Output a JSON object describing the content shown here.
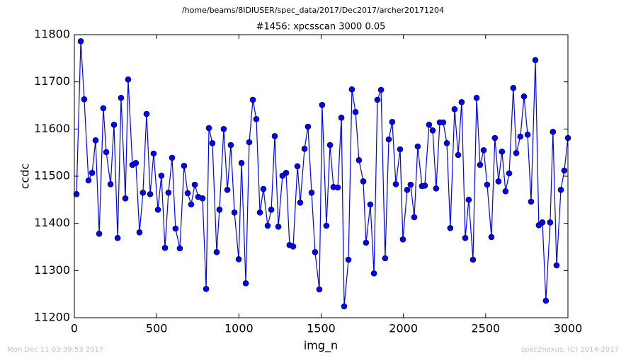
{
  "chart_data": {
    "type": "line",
    "title": "/home/beams/8IDIUSER/spec_data/2017/Dec2017/archer20171204",
    "subtitle": "#1456: xpcsscan 3000 0.05",
    "xlabel": "img_n",
    "ylabel": "ccdc",
    "x": [
      13,
      39,
      60,
      86,
      108,
      129,
      151,
      176,
      194,
      220,
      241,
      263,
      284,
      310,
      327,
      353,
      374,
      396,
      417,
      439,
      461,
      482,
      508,
      529,
      551,
      572,
      594,
      615,
      641,
      667,
      689,
      710,
      732,
      753,
      779,
      801,
      818,
      839,
      865,
      882,
      908,
      930,
      951,
      973,
      999,
      1016,
      1042,
      1063,
      1085,
      1106,
      1128,
      1149,
      1175,
      1197,
      1218,
      1240,
      1265,
      1287,
      1308,
      1330,
      1356,
      1373,
      1399,
      1420,
      1442,
      1463,
      1489,
      1506,
      1532,
      1554,
      1575,
      1601,
      1623,
      1640,
      1666,
      1687,
      1709,
      1730,
      1756,
      1773,
      1799,
      1821,
      1842,
      1864,
      1889,
      1911,
      1932,
      1954,
      1980,
      1997,
      2023,
      2044,
      2066,
      2087,
      2113,
      2130,
      2156,
      2178,
      2199,
      2221,
      2242,
      2264,
      2285,
      2311,
      2333,
      2354,
      2376,
      2397,
      2423,
      2445,
      2466,
      2488,
      2509,
      2535,
      2556,
      2578,
      2599,
      2621,
      2643,
      2668,
      2686,
      2711,
      2733,
      2755,
      2776,
      2802,
      2823,
      2845,
      2866,
      2892,
      2909,
      2931,
      2957,
      2978,
      3000
    ],
    "series": [
      {
        "color": "#0000ff",
        "values": [
          11462,
          11786,
          11663,
          11491,
          11507,
          11576,
          11378,
          11644,
          11551,
          11483,
          11609,
          11369,
          11666,
          11453,
          11705,
          11524,
          11528,
          11381,
          11465,
          11632,
          11462,
          11548,
          11429,
          11501,
          11348,
          11465,
          11539,
          11389,
          11347,
          11522,
          11464,
          11440,
          11482,
          11456,
          11453,
          11261,
          11602,
          11570,
          11339,
          11429,
          11600,
          11471,
          11566,
          11423,
          11324,
          11528,
          11273,
          11572,
          11662,
          11621,
          11423,
          11473,
          11395,
          11429,
          11585,
          11393,
          11501,
          11507,
          11354,
          11351,
          11521,
          11444,
          11558,
          11605,
          11465,
          11339,
          11260,
          11651,
          11395,
          11566,
          11477,
          11476,
          11624,
          11224,
          11323,
          11684,
          11636,
          11534,
          11489,
          11359,
          11440,
          11294,
          11662,
          11683,
          11326,
          11578,
          11615,
          11483,
          11557,
          11366,
          11471,
          11482,
          11413,
          11563,
          11479,
          11480,
          11609,
          11597,
          11474,
          11614,
          11614,
          11570,
          11390,
          11642,
          11545,
          11657,
          11369,
          11450,
          11323,
          11666,
          11524,
          11555,
          11482,
          11371,
          11581,
          11489,
          11552,
          11468,
          11506,
          11687,
          11549,
          11584,
          11669,
          11588,
          11446,
          11746,
          11396,
          11402,
          11236,
          11402,
          11594,
          11311,
          11471,
          11512,
          11581
        ]
      }
    ],
    "xlim": [
      0,
      3000
    ],
    "ylim": [
      11200,
      11800
    ],
    "xticks": [
      0,
      500,
      1000,
      1500,
      2000,
      2500,
      3000
    ],
    "yticks": [
      11200,
      11300,
      11400,
      11500,
      11600,
      11700,
      11800
    ]
  },
  "footer": {
    "left": "Mon Dec 11 03:39:53 2017",
    "right": "spec2nexus, (C) 2014-2017"
  }
}
